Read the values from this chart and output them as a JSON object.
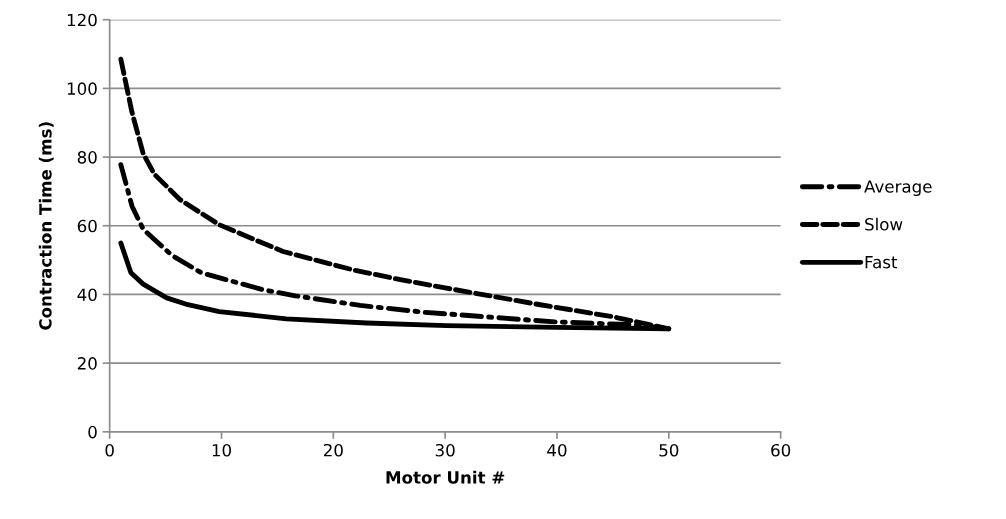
{
  "chart_data": {
    "type": "line",
    "xlabel": "Motor Unit #",
    "ylabel": "Contraction Time (ms)",
    "xlim": [
      0,
      60
    ],
    "xticks": [
      0,
      10,
      20,
      30,
      40,
      50,
      60
    ],
    "ylim": [
      0,
      120
    ],
    "yticks": [
      0,
      20,
      40,
      60,
      80,
      100,
      120
    ],
    "grid": "y",
    "legend": "right",
    "marker": "none",
    "series": [
      {
        "name": "Average",
        "color": "#000000",
        "line_style": "dashdot",
        "x": [
          1,
          2,
          3,
          4,
          5.6,
          8.2,
          11,
          13.7,
          16.6,
          22.4,
          28.2,
          34,
          39.8,
          46.8,
          50
        ],
        "values": [
          77.8,
          65.7,
          59,
          56,
          51.3,
          46.3,
          43.8,
          41.4,
          39.6,
          36.8,
          34.8,
          33.4,
          32,
          31.2,
          30
        ]
      },
      {
        "name": "Slow",
        "color": "#000000",
        "line_style": "dashed",
        "x": [
          1,
          2,
          3,
          4,
          6.3,
          9.8,
          15.5,
          21.7,
          26,
          30,
          38.5,
          45,
          50
        ],
        "values": [
          108.5,
          93,
          81,
          75,
          67.6,
          60.3,
          52.5,
          47.2,
          44.3,
          41.9,
          37,
          33.5,
          30
        ]
      },
      {
        "name": "Fast",
        "color": "#000000",
        "line_style": "solid",
        "x": [
          1,
          1.9,
          3,
          5.1,
          7,
          9.8,
          15.8,
          23,
          30.1,
          40,
          50
        ],
        "values": [
          55,
          46.3,
          43,
          39,
          37,
          35,
          32.9,
          31.7,
          30.9,
          30.4,
          30
        ]
      }
    ]
  }
}
